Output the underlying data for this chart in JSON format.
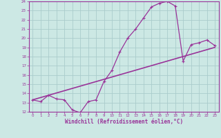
{
  "xlabel": "Windchill (Refroidissement éolien,°C)",
  "bg_color": "#cce8e4",
  "grid_color": "#aacccc",
  "line_color": "#993399",
  "spine_color": "#993399",
  "xlim": [
    -0.5,
    23.5
  ],
  "ylim": [
    12,
    24
  ],
  "yticks": [
    12,
    13,
    14,
    15,
    16,
    17,
    18,
    19,
    20,
    21,
    22,
    23,
    24
  ],
  "xticks": [
    0,
    1,
    2,
    3,
    4,
    5,
    6,
    7,
    8,
    9,
    10,
    11,
    12,
    13,
    14,
    15,
    16,
    17,
    18,
    19,
    20,
    21,
    22,
    23
  ],
  "curve1_x": [
    0,
    1,
    2,
    3,
    4,
    5,
    6,
    7,
    8,
    9,
    10,
    11,
    12,
    13,
    14,
    15,
    16,
    17,
    18,
    19,
    20,
    21,
    22,
    23
  ],
  "curve1_y": [
    13.3,
    13.1,
    13.8,
    13.4,
    13.3,
    12.2,
    11.9,
    13.1,
    13.3,
    15.3,
    16.5,
    18.5,
    20.0,
    21.0,
    22.2,
    23.4,
    23.8,
    24.0,
    23.5,
    17.5,
    19.3,
    19.5,
    19.8,
    19.2
  ],
  "curve2_x": [
    0,
    23
  ],
  "curve2_y": [
    13.3,
    19.0
  ]
}
